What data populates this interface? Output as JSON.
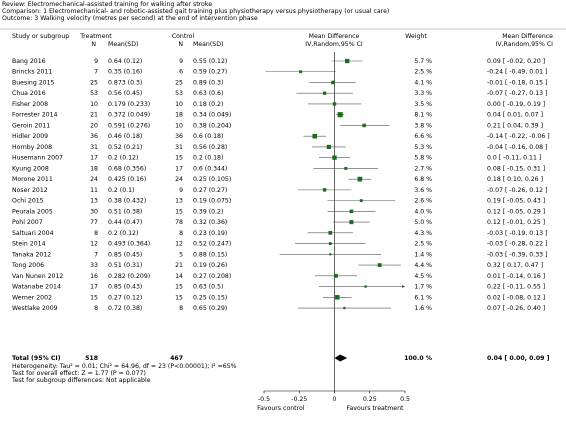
{
  "chart_data": {
    "type": "forest",
    "header": {
      "review": "Review:  Electromechanical-assisted training for walking after stroke",
      "comparison": "Comparison:  1 Electromechanical- and robotic-assisted gait training plus physiotherapy versus physiotherapy (or usual care)",
      "outcome": "Outcome:  3 Walking velocity (metres per second) at the end of intervention phase"
    },
    "columns": {
      "study": "Study or subgroup",
      "treatment": "Treatment",
      "treatment_n": "N",
      "treatment_mean_sd": "Mean(SD)",
      "control": "Control",
      "control_n": "N",
      "control_mean_sd": "Mean(SD)",
      "plot": "Mean Difference",
      "plot_method": "IV,Random,95% CI",
      "weight": "Weight",
      "effect": "Mean Difference",
      "effect_method": "IV,Random,95% CI"
    },
    "studies": [
      "Bang 2016",
      "Brincks 2011",
      "Buesing 2015",
      "Chua 2016",
      "Fisher 2008",
      "Forrester 2014",
      "Geroin 2011",
      "Hidler 2009",
      "Hornby 2008",
      "Husemann 2007",
      "Kyung 2008",
      "Morone 2011",
      "Noser 2012",
      "Ochi 2015",
      "Peurala 2005",
      "Pohl 2007",
      "Saltuari 2004",
      "Stein 2014",
      "Tanaka 2012",
      "Tong 2006",
      "Van Nunen 2012",
      "Watanabe 2014",
      "Werner 2002",
      "Westlake 2009"
    ],
    "treatment_n": [
      9,
      7,
      25,
      53,
      10,
      21,
      20,
      36,
      31,
      17,
      18,
      24,
      11,
      13,
      30,
      77,
      8,
      12,
      7,
      33,
      16,
      17,
      15,
      8
    ],
    "treatment_mean_sd": [
      "0.64 (0.12)",
      "0.35 (0.16)",
      "0.873 (0.3)",
      "0.56 (0.45)",
      "0.179 (0.233)",
      "0.372 (0.049)",
      "0.591 (0.276)",
      "0.46 (0.18)",
      "0.52 (0.21)",
      "0.2 (0.12)",
      "0.68 (0.356)",
      "0.425 (0.16)",
      "0.2 (0.1)",
      "0.38 (0.432)",
      "0.51 (0.38)",
      "0.44 (0.47)",
      "0.2 (0.12)",
      "0.493 (0.364)",
      "0.85 (0.45)",
      "0.51 (0.31)",
      "0.282 (0.209)",
      "0.85 (0.43)",
      "0.27 (0.12)",
      "0.72 (0.38)"
    ],
    "control_n": [
      9,
      6,
      25,
      53,
      10,
      18,
      10,
      36,
      31,
      15,
      17,
      24,
      9,
      13,
      15,
      78,
      8,
      12,
      5,
      21,
      14,
      15,
      15,
      8
    ],
    "control_mean_sd": [
      "0.55 (0.12)",
      "0.59 (0.27)",
      "0.89 (0.3)",
      "0.63 (0.6)",
      "0.18 (0.2)",
      "0.34 (0.049)",
      "0.38 (0.204)",
      "0.6 (0.18)",
      "0.56 (0.28)",
      "0.2 (0.18)",
      "0.6 (0.344)",
      "0.25 (0.105)",
      "0.27 (0.27)",
      "0.19 (0.075)",
      "0.39 (0.2)",
      "0.32 (0.36)",
      "0.23 (0.19)",
      "0.52 (0.247)",
      "0.88 (0.15)",
      "0.19 (0.26)",
      "0.27 (0.208)",
      "0.63 (0.5)",
      "0.25 (0.15)",
      "0.65 (0.29)"
    ],
    "weights": [
      5.7,
      2.5,
      4.1,
      3.3,
      3.5,
      8.1,
      3.8,
      6.6,
      5.3,
      5.8,
      2.7,
      6.8,
      3.6,
      2.6,
      4.0,
      5.0,
      4.3,
      2.5,
      1.4,
      4.4,
      4.5,
      1.7,
      6.1,
      1.6
    ],
    "weight_labels": [
      "5.7 %",
      "2.5 %",
      "4.1 %",
      "3.3 %",
      "3.5 %",
      "8.1 %",
      "3.8 %",
      "6.6 %",
      "5.3 %",
      "5.8 %",
      "2.7 %",
      "6.8 %",
      "3.6 %",
      "2.6 %",
      "4.0 %",
      "5.0 %",
      "4.3 %",
      "2.5 %",
      "1.4 %",
      "4.4 %",
      "4.5 %",
      "1.7 %",
      "6.1 %",
      "1.6 %"
    ],
    "values": [
      0.09,
      -0.24,
      -0.01,
      -0.07,
      0.0,
      0.04,
      0.21,
      -0.14,
      -0.04,
      0.0,
      0.08,
      0.18,
      -0.07,
      0.19,
      0.12,
      0.12,
      -0.03,
      -0.03,
      -0.03,
      0.32,
      0.01,
      0.22,
      0.02,
      0.07
    ],
    "ci_lower": [
      -0.02,
      -0.49,
      -0.18,
      -0.27,
      -0.19,
      0.01,
      0.04,
      -0.22,
      -0.16,
      -0.11,
      -0.15,
      0.1,
      -0.26,
      -0.05,
      -0.05,
      -0.01,
      -0.19,
      -0.28,
      -0.39,
      0.17,
      -0.14,
      -0.11,
      -0.08,
      -0.26
    ],
    "ci_upper": [
      0.2,
      0.01,
      0.15,
      0.13,
      0.19,
      0.07,
      0.39,
      -0.06,
      0.08,
      0.11,
      0.31,
      0.26,
      0.12,
      0.43,
      0.29,
      0.25,
      0.13,
      0.22,
      0.33,
      0.47,
      0.16,
      0.55,
      0.12,
      0.4
    ],
    "value_labels": [
      "0.09 [ -0.02, 0.20 ]",
      "-0.24 [ -0.49, 0.01 ]",
      "-0.01 [ -0.18, 0.15 ]",
      "-0.07 [ -0.27, 0.13 ]",
      "0.00 [ -0.19, 0.19 ]",
      "0.04 [ 0.01, 0.07 ]",
      "0.21 [ 0.04, 0.39 ]",
      "-0.14 [ -0.22, -0.06 ]",
      "-0.04 [ -0.16, 0.08 ]",
      "0.0 [ -0.11, 0.11 ]",
      "0.08 [ -0.15, 0.31 ]",
      "0.18 [ 0.10, 0.26 ]",
      "-0.07 [ -0.26, 0.12 ]",
      "0.19 [ -0.05, 0.43 ]",
      "0.12 [ -0.05, 0.29 ]",
      "0.12 [ -0.01, 0.25 ]",
      "-0.03 [ -0.19, 0.13 ]",
      "-0.03 [ -0.28, 0.22 ]",
      "-0.03 [ -0.39, 0.33 ]",
      "0.32 [ 0.17, 0.47 ]",
      "0.01 [ -0.14, 0.16 ]",
      "0.22 [ -0.11, 0.55 ]",
      "0.02 [ -0.08, 0.12 ]",
      "0.07 [ -0.26, 0.40 ]"
    ],
    "total": {
      "label": "Total (95% CI)",
      "treatment_n": 518,
      "control_n": 467,
      "weight": 100,
      "weight_label": "100.0 %",
      "value": 0.04,
      "ci_lower": 0.0,
      "ci_upper": 0.09,
      "value_label": "0.04 [ 0.00, 0.09 ]"
    },
    "footnotes": [
      "Heterogeneity: Tau² = 0.01; Chi² = 64.96, df = 23 (P<0.00001); I² =65%",
      "Test for overall effect: Z = 1.77 (P = 0.077)",
      "Test for subgroup differences: Not applicable"
    ],
    "xlim": [
      -0.5,
      0.5
    ],
    "xticks": [
      -0.5,
      -0.25,
      0,
      0.25,
      0.5
    ],
    "xlabel_left": "Favours control",
    "xlabel_right": "Favours treatment",
    "color": "#1e6b1e"
  }
}
